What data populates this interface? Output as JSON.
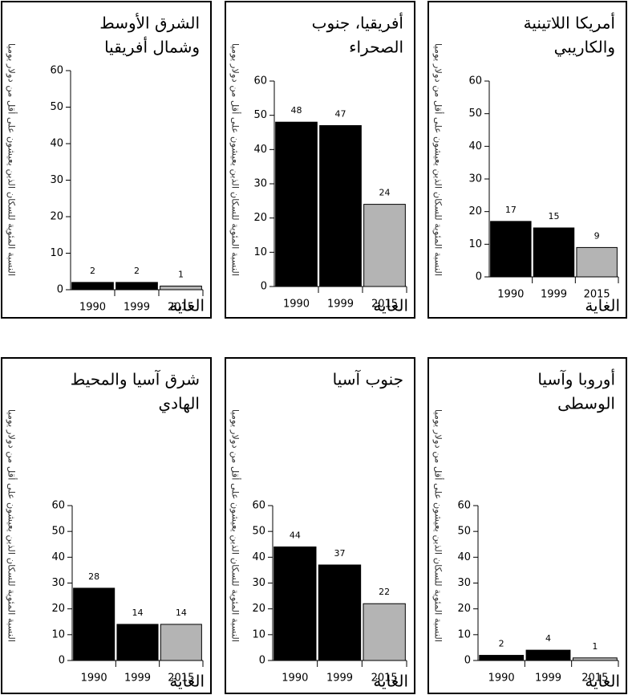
{
  "chart_data": [
    {
      "type": "bar",
      "title": [
        "الشرق الأوسط",
        "وشمال أفريقيا"
      ],
      "y_label": "النسبة المئوية للسكان الذين يعيشون على أقل من دولار يوميا",
      "x_label": "الغاية",
      "categories": [
        "1990",
        "1999",
        "2015"
      ],
      "values": [
        2,
        2,
        1
      ],
      "colors": [
        "#000000",
        "#000000",
        "#b4b4b4"
      ],
      "ylim": [
        0,
        60
      ],
      "yticks": [
        0,
        10,
        20,
        30,
        40,
        50,
        60
      ]
    },
    {
      "type": "bar",
      "title": [
        "أفريقيا، جنوب",
        "الصحراء"
      ],
      "y_label": "النسبة المئوية للسكان الذين يعيشون على أقل من دولار يوميا",
      "x_label": "الغاية",
      "categories": [
        "1990",
        "1999",
        "2015"
      ],
      "values": [
        48,
        47,
        24
      ],
      "colors": [
        "#000000",
        "#000000",
        "#b4b4b4"
      ],
      "ylim": [
        0,
        60
      ],
      "yticks": [
        0,
        10,
        20,
        30,
        40,
        50,
        60
      ]
    },
    {
      "type": "bar",
      "title": [
        "أمريكا اللاتينية",
        "والكاريبي"
      ],
      "y_label": "النسبة المئوية للسكان الذين يعيشون على أقل من دولار يوميا",
      "x_label": "الغاية",
      "categories": [
        "1990",
        "1999",
        "2015"
      ],
      "values": [
        17,
        15,
        9
      ],
      "colors": [
        "#000000",
        "#000000",
        "#b4b4b4"
      ],
      "ylim": [
        0,
        60
      ],
      "yticks": [
        0,
        10,
        20,
        30,
        40,
        50,
        60
      ]
    },
    {
      "type": "bar",
      "title": [
        "شرق آسيا والمحيط",
        "الهادي"
      ],
      "y_label": "النسبة المئوية للسكان الذين يعيشون على أقل من دولار يوميا",
      "x_label": "الغاية",
      "categories": [
        "1990",
        "1999",
        "2015"
      ],
      "values": [
        28,
        14,
        14
      ],
      "colors": [
        "#000000",
        "#000000",
        "#b4b4b4"
      ],
      "ylim": [
        0,
        60
      ],
      "yticks": [
        0,
        10,
        20,
        30,
        40,
        50,
        60
      ]
    },
    {
      "type": "bar",
      "title": [
        "جنوب آسيا"
      ],
      "y_label": "النسبة المئوية للسكان الذين يعيشون على أقل من دولار يوميا",
      "x_label": "الغاية",
      "categories": [
        "1990",
        "1999",
        "2015"
      ],
      "values": [
        44,
        37,
        22
      ],
      "colors": [
        "#000000",
        "#000000",
        "#b4b4b4"
      ],
      "ylim": [
        0,
        60
      ],
      "yticks": [
        0,
        10,
        20,
        30,
        40,
        50,
        60
      ]
    },
    {
      "type": "bar",
      "title": [
        "أوروبا وآسيا",
        "الوسطى"
      ],
      "y_label": "النسبة المئوية للسكان الذين يعيشون على أقل من دولار يوميا",
      "x_label": "الغاية",
      "categories": [
        "1990",
        "1999",
        "2015"
      ],
      "values": [
        2,
        4,
        1
      ],
      "colors": [
        "#000000",
        "#000000",
        "#b4b4b4"
      ],
      "ylim": [
        0,
        60
      ],
      "yticks": [
        0,
        10,
        20,
        30,
        40,
        50,
        60
      ]
    }
  ]
}
